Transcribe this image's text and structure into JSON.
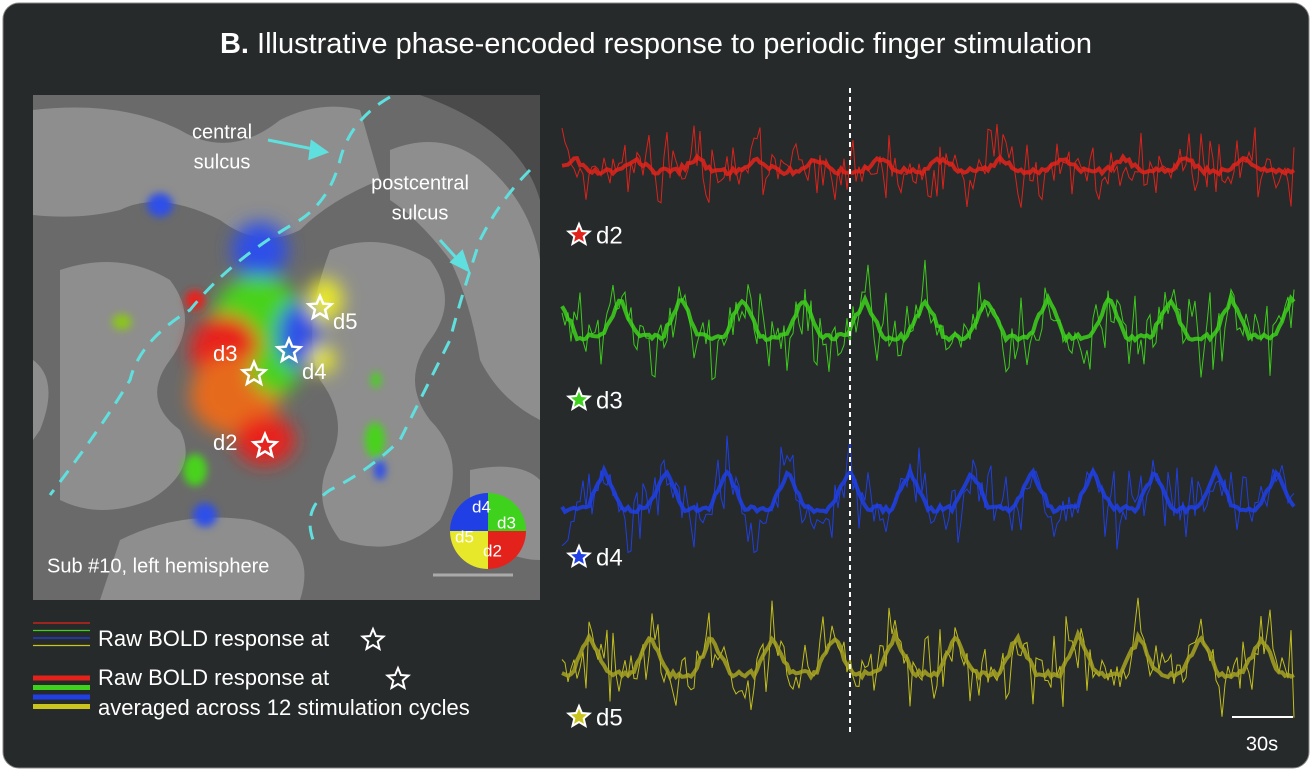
{
  "title": {
    "prefix": "B.",
    "text": "Illustrative phase-encoded response to periodic finger stimulation"
  },
  "brain": {
    "central_sulcus": [
      "central",
      "sulcus"
    ],
    "postcentral_sulcus": [
      "postcentral",
      "sulcus"
    ],
    "digits": [
      "d2",
      "d3",
      "d4",
      "d5"
    ],
    "subject": "Sub #10, left hemisphere",
    "colorwheel": [
      "d4",
      "d3",
      "d5",
      "d2"
    ]
  },
  "traces": [
    {
      "label": "d2",
      "color": "#e3231b"
    },
    {
      "label": "d3",
      "color": "#3ed21c"
    },
    {
      "label": "d4",
      "color": "#2040e6"
    },
    {
      "label": "d5",
      "color": "#c9c51e"
    }
  ],
  "legend": {
    "raw": "Raw BOLD response at",
    "averaged": [
      "Raw BOLD response at",
      "averaged across 12 stimulation cycles"
    ]
  },
  "scale_bar": "30s"
}
